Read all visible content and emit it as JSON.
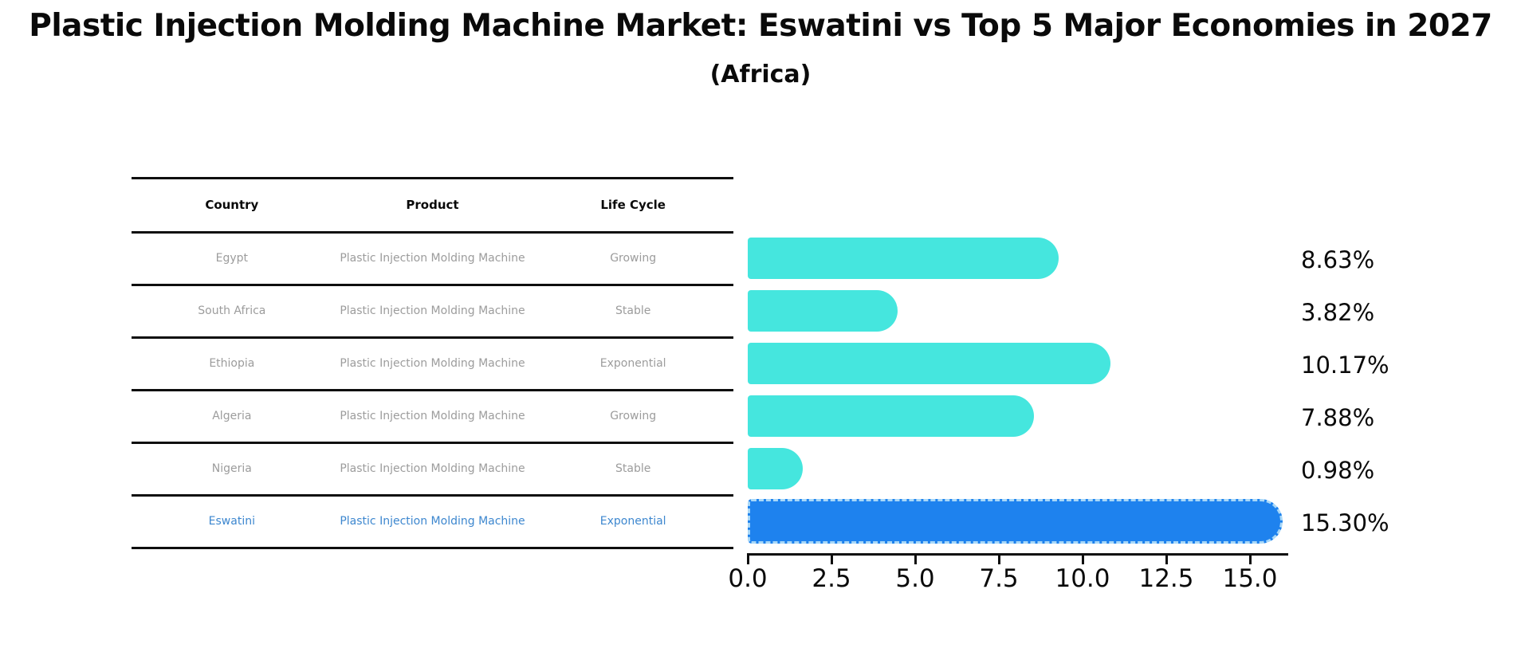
{
  "figure": {
    "title": "Plastic Injection Molding Machine Market: Eswatini vs Top 5 Major Economies in 2027",
    "subtitle": "(Africa)"
  },
  "table": {
    "headers": [
      "Country",
      "Product",
      "Life Cycle"
    ],
    "rows": [
      {
        "country": "Egypt",
        "product": "Plastic Injection Molding Machine",
        "life_cycle": "Growing"
      },
      {
        "country": "South Africa",
        "product": "Plastic Injection Molding Machine",
        "life_cycle": "Stable"
      },
      {
        "country": "Ethiopia",
        "product": "Plastic Injection Molding Machine",
        "life_cycle": "Exponential"
      },
      {
        "country": "Algeria",
        "product": "Plastic Injection Molding Machine",
        "life_cycle": "Growing"
      },
      {
        "country": "Nigeria",
        "product": "Plastic Injection Molding Machine",
        "life_cycle": "Stable"
      },
      {
        "country": "Eswatini",
        "product": "Plastic Injection Molding Machine",
        "life_cycle": "Exponential"
      }
    ],
    "highlighted_row": "Eswatini"
  },
  "chart_data": {
    "type": "bar",
    "orientation": "horizontal",
    "categories": [
      "Egypt",
      "South Africa",
      "Ethiopia",
      "Algeria",
      "Nigeria",
      "Eswatini"
    ],
    "values": [
      8.63,
      3.82,
      10.17,
      7.88,
      0.98,
      15.3
    ],
    "value_labels": [
      "8.63%",
      "3.82%",
      "10.17%",
      "7.88%",
      "0.98%",
      "15.30%"
    ],
    "x_ticks": [
      "0.0",
      "2.5",
      "5.0",
      "7.5",
      "10.0",
      "12.5",
      "15.0"
    ],
    "xlim": [
      0,
      16.1
    ],
    "grid": false,
    "legend": false,
    "title": "Plastic Injection Molding Machine Market: Eswatini vs Top 5 Major Economies in 2027 (Africa)",
    "xlabel": "",
    "ylabel": "",
    "bar_color": "#45e6de",
    "highlight_bar_color": "#1e82ee",
    "highlight_edge_color": "#a9d8f8",
    "highlight_edge_style": "dashed",
    "highlight_index": 5
  }
}
